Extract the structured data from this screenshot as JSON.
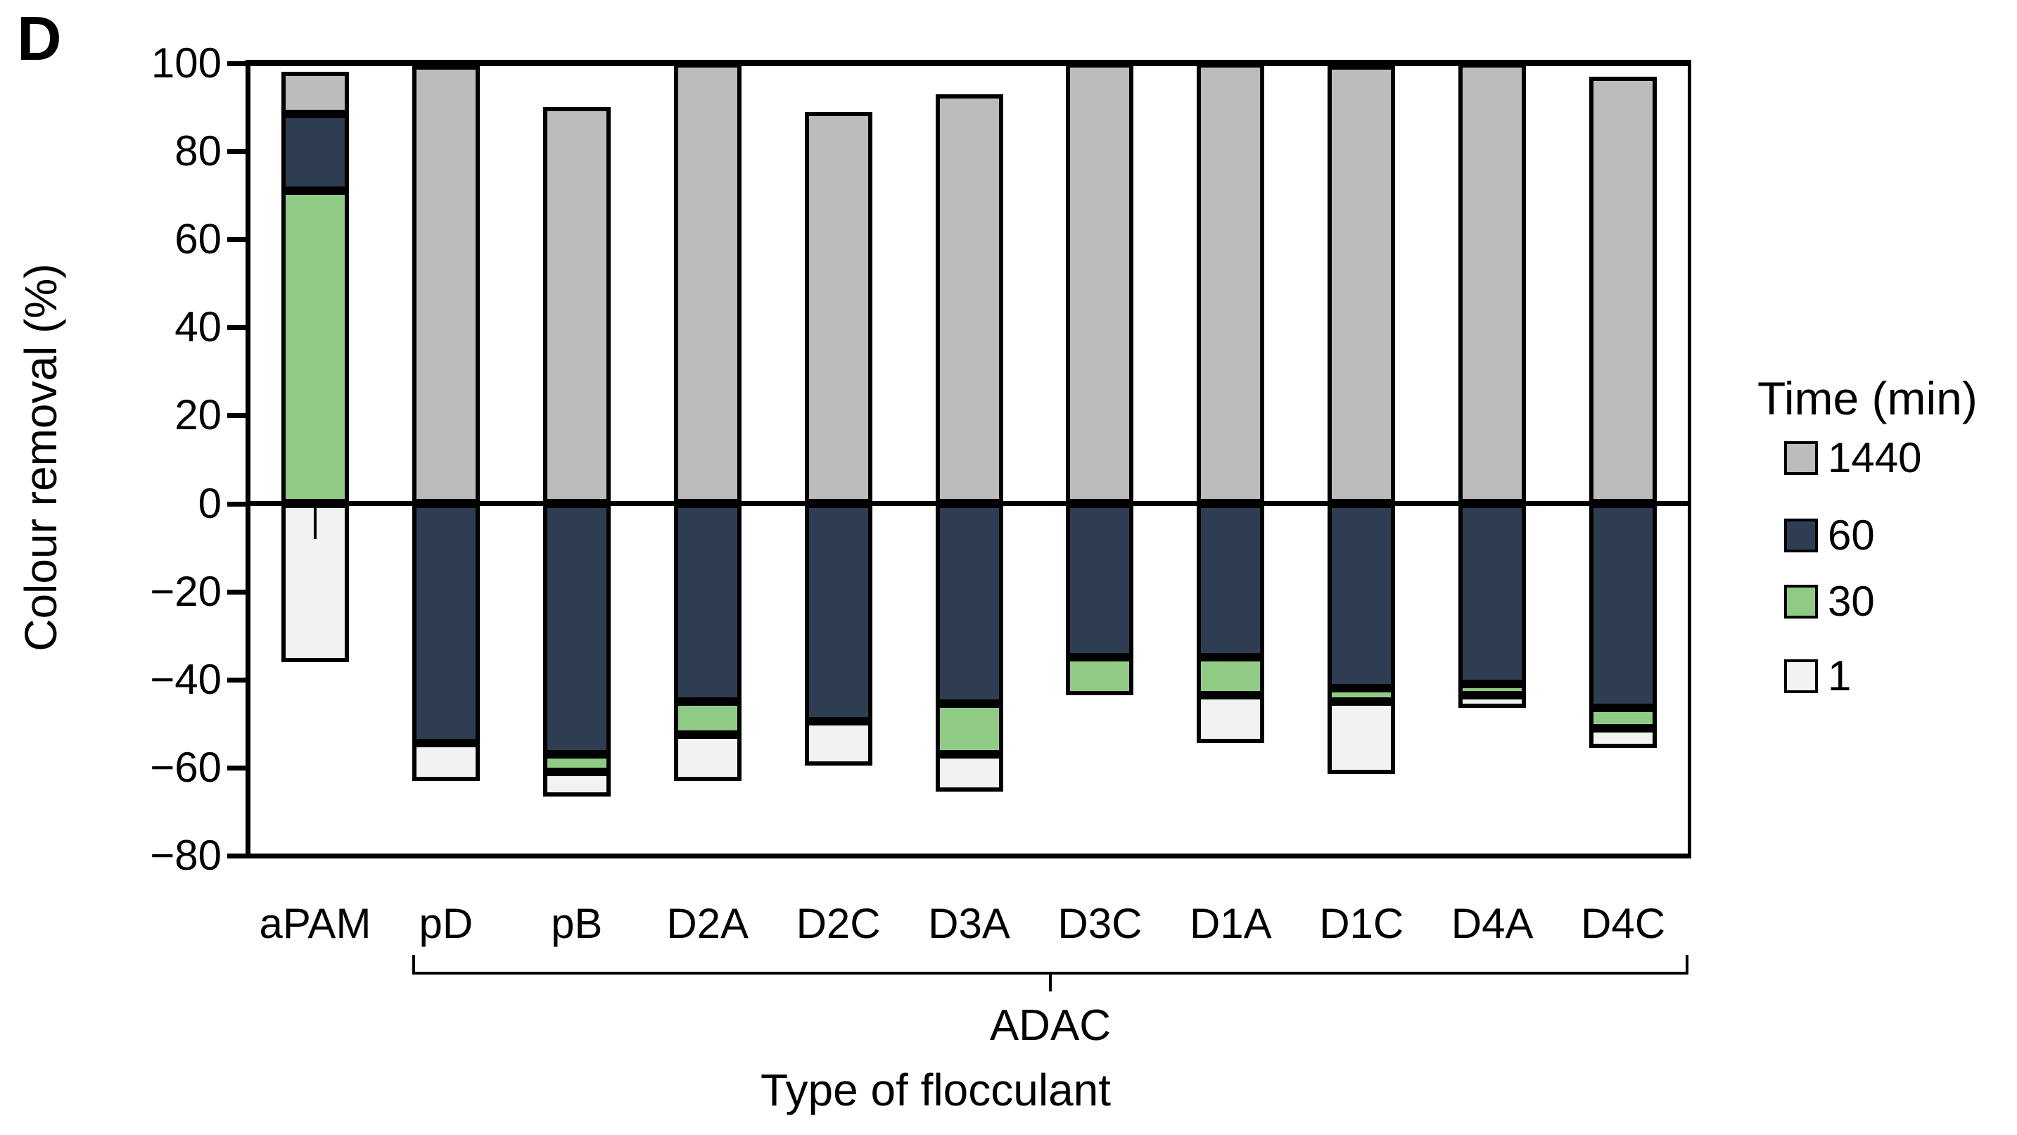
{
  "panel_label": "D",
  "y_axis": {
    "title": "Colour removal (%)",
    "min": -80,
    "max": 100,
    "ticks": [
      {
        "value": 100,
        "label": "100"
      },
      {
        "value": 80,
        "label": "80"
      },
      {
        "value": 60,
        "label": "60"
      },
      {
        "value": 40,
        "label": "40"
      },
      {
        "value": 20,
        "label": "20"
      },
      {
        "value": 0,
        "label": "0"
      },
      {
        "value": -20,
        "label": "−20"
      },
      {
        "value": -40,
        "label": "−40"
      },
      {
        "value": -60,
        "label": "−60"
      },
      {
        "value": -80,
        "label": "−80"
      }
    ]
  },
  "x_axis": {
    "title": "Type of flocculant",
    "group_label": "ADAC",
    "group_members": [
      "pD",
      "pB",
      "D2A",
      "D2C",
      "D3A",
      "D3C",
      "D1A",
      "D1C",
      "D4A",
      "D4C"
    ],
    "categories": [
      "aPAM",
      "pD",
      "pB",
      "D2A",
      "D2C",
      "D3A",
      "D3C",
      "D1A",
      "D1C",
      "D4A",
      "D4C"
    ]
  },
  "legend": {
    "title": "Time (min)",
    "items": [
      {
        "label": "1440",
        "color": "#bcbcbc"
      },
      {
        "label": "60",
        "color": "#2e3d52"
      },
      {
        "label": "30",
        "color": "#90cb86"
      },
      {
        "label": "1",
        "color": "#f2f2f2"
      }
    ]
  },
  "chart_data": {
    "type": "bar",
    "stacked": true,
    "title": "",
    "xlabel": "Type of flocculant",
    "ylabel": "Colour removal (%)",
    "ylim": [
      -80,
      100
    ],
    "grid": false,
    "legend_position": "right",
    "categories": [
      "aPAM",
      "pD",
      "pB",
      "D2A",
      "D2C",
      "D3A",
      "D3C",
      "D1A",
      "D1C",
      "D4A",
      "D4C"
    ],
    "bars": [
      {
        "label": "aPAM",
        "segments": [
          {
            "time": "30",
            "from": 0,
            "to": 71
          },
          {
            "time": "60",
            "from": 71,
            "to": 88.5
          },
          {
            "time": "1440",
            "from": 88.5,
            "to": 98
          },
          {
            "time": "1",
            "from": 0,
            "to": -36
          }
        ],
        "error_whisker": {
          "at_value": 0,
          "down_to": -8
        }
      },
      {
        "label": "pD",
        "segments": [
          {
            "time": "1440",
            "from": 0,
            "to": 99.5
          },
          {
            "time": "60",
            "from": 0,
            "to": -54.5
          },
          {
            "time": "1",
            "from": -54.5,
            "to": -63
          }
        ]
      },
      {
        "label": "pB",
        "segments": [
          {
            "time": "1440",
            "from": 0,
            "to": 90
          },
          {
            "time": "60",
            "from": 0,
            "to": -57
          },
          {
            "time": "30",
            "from": -57,
            "to": -61
          },
          {
            "time": "1",
            "from": -61,
            "to": -66.5
          }
        ]
      },
      {
        "label": "D2A",
        "segments": [
          {
            "time": "1440",
            "from": 0,
            "to": 100
          },
          {
            "time": "60",
            "from": 0,
            "to": -45
          },
          {
            "time": "30",
            "from": -45,
            "to": -52.5
          },
          {
            "time": "1",
            "from": -52.5,
            "to": -63
          }
        ]
      },
      {
        "label": "D2C",
        "segments": [
          {
            "time": "1440",
            "from": 0,
            "to": 89
          },
          {
            "time": "60",
            "from": 0,
            "to": -49.5
          },
          {
            "time": "1",
            "from": -49.5,
            "to": -59.5
          }
        ]
      },
      {
        "label": "D3A",
        "segments": [
          {
            "time": "1440",
            "from": 0,
            "to": 93
          },
          {
            "time": "60",
            "from": 0,
            "to": -45.5
          },
          {
            "time": "30",
            "from": -45.5,
            "to": -57
          },
          {
            "time": "1",
            "from": -57,
            "to": -65.5
          }
        ]
      },
      {
        "label": "D3C",
        "segments": [
          {
            "time": "1440",
            "from": 0,
            "to": 100
          },
          {
            "time": "60",
            "from": 0,
            "to": -35
          },
          {
            "time": "30",
            "from": -35,
            "to": -43.5
          }
        ]
      },
      {
        "label": "D1A",
        "segments": [
          {
            "time": "1440",
            "from": 0,
            "to": 100
          },
          {
            "time": "60",
            "from": 0,
            "to": -35
          },
          {
            "time": "30",
            "from": -35,
            "to": -43.5
          },
          {
            "time": "1",
            "from": -43.5,
            "to": -54.5
          }
        ]
      },
      {
        "label": "D1C",
        "segments": [
          {
            "time": "1440",
            "from": 0,
            "to": 99.5
          },
          {
            "time": "60",
            "from": 0,
            "to": -42
          },
          {
            "time": "30",
            "from": -42,
            "to": -45
          },
          {
            "time": "1",
            "from": -45,
            "to": -61.5
          }
        ]
      },
      {
        "label": "D4A",
        "segments": [
          {
            "time": "1440",
            "from": 0,
            "to": 100
          },
          {
            "time": "60",
            "from": 0,
            "to": -41
          },
          {
            "time": "30",
            "from": -41,
            "to": -43.5
          },
          {
            "time": "1",
            "from": -43.5,
            "to": -46.5
          }
        ]
      },
      {
        "label": "D4C",
        "segments": [
          {
            "time": "1440",
            "from": 0,
            "to": 97
          },
          {
            "time": "60",
            "from": 0,
            "to": -46.5
          },
          {
            "time": "30",
            "from": -46.5,
            "to": -51
          },
          {
            "time": "1",
            "from": -51,
            "to": -55.5
          }
        ]
      }
    ]
  }
}
